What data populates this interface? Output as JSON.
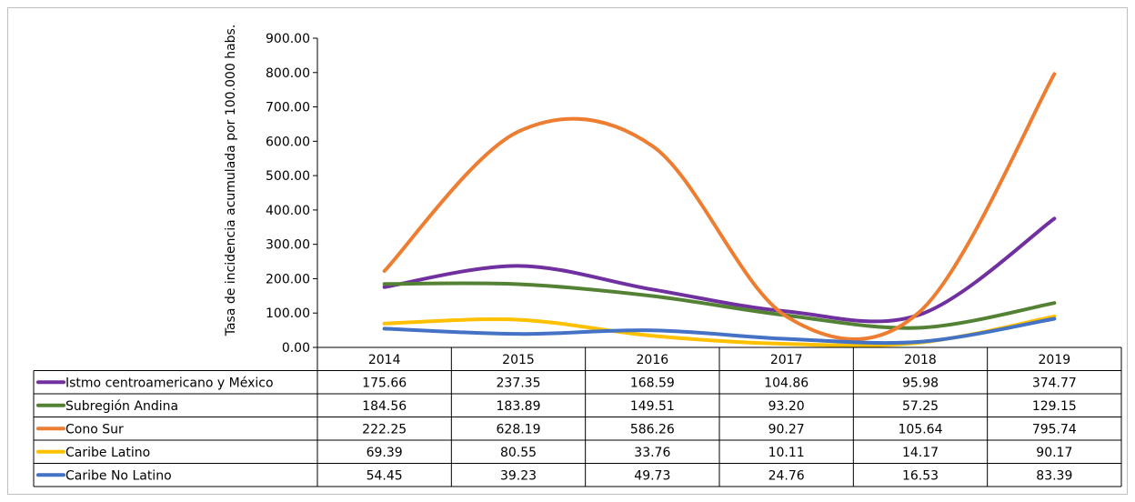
{
  "chart_data": {
    "type": "line",
    "title": "",
    "xlabel": "",
    "ylabel": "Tasa de incidencia acumulada por 100.000 habs.",
    "categories": [
      "2014",
      "2015",
      "2016",
      "2017",
      "2018",
      "2019"
    ],
    "ylim": [
      0,
      900
    ],
    "yticks": [
      "0.00",
      "100.00",
      "200.00",
      "300.00",
      "400.00",
      "500.00",
      "600.00",
      "700.00",
      "800.00",
      "900.00"
    ],
    "grid": false,
    "legend": "data-table",
    "series": [
      {
        "name": "Istmo centroamericano y México",
        "color": "#7030a0",
        "values": [
          175.66,
          237.35,
          168.59,
          104.86,
          95.98,
          374.77
        ],
        "labels": [
          "175.66",
          "237.35",
          "168.59",
          "104.86",
          "95.98",
          "374.77"
        ]
      },
      {
        "name": "Subregión Andina",
        "color": "#548235",
        "values": [
          184.56,
          183.89,
          149.51,
          93.2,
          57.25,
          129.15
        ],
        "labels": [
          "184.56",
          "183.89",
          "149.51",
          "93.20",
          "57.25",
          "129.15"
        ]
      },
      {
        "name": "Cono Sur",
        "color": "#ed7d31",
        "values": [
          222.25,
          628.19,
          586.26,
          90.27,
          105.64,
          795.74
        ],
        "labels": [
          "222.25",
          "628.19",
          "586.26",
          "90.27",
          "105.64",
          "795.74"
        ]
      },
      {
        "name": "Caribe Latino",
        "color": "#ffc000",
        "values": [
          69.39,
          80.55,
          33.76,
          10.11,
          14.17,
          90.17
        ],
        "labels": [
          "69.39",
          "80.55",
          "33.76",
          "10.11",
          "14.17",
          "90.17"
        ]
      },
      {
        "name": "Caribe No Latino",
        "color": "#4472c4",
        "values": [
          54.45,
          39.23,
          49.73,
          24.76,
          16.53,
          83.39
        ],
        "labels": [
          "54.45",
          "39.23",
          "49.73",
          "24.76",
          "16.53",
          "83.39"
        ]
      }
    ]
  }
}
